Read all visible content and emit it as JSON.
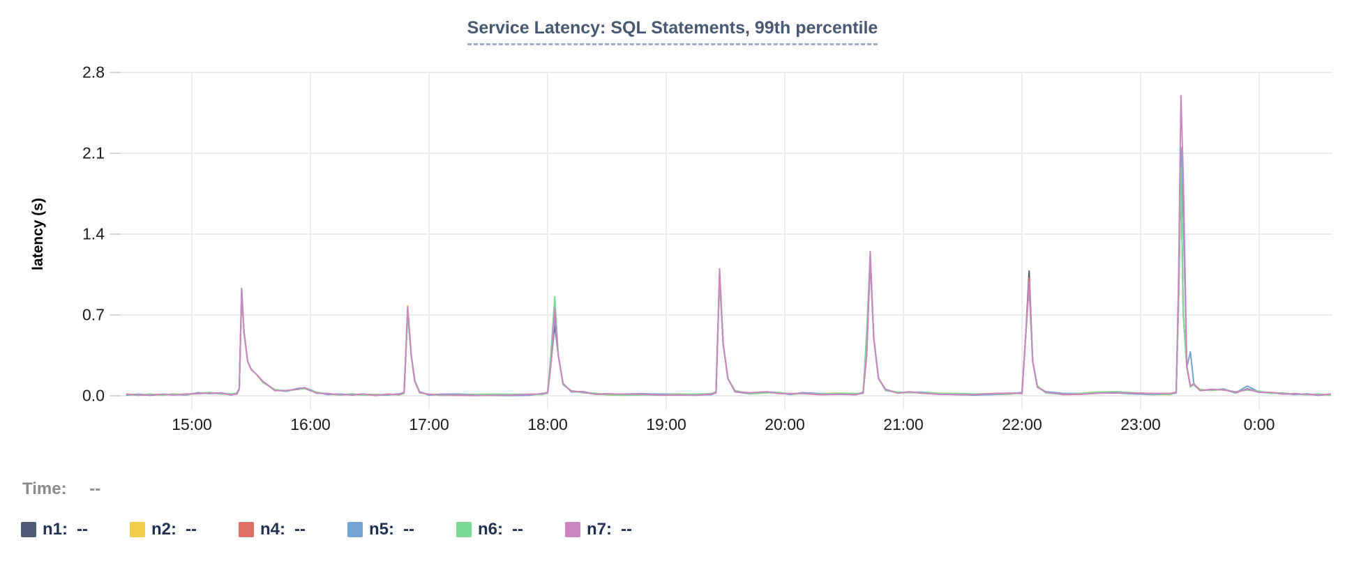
{
  "hover": {
    "time_label": "Time:",
    "time_value": "--"
  },
  "legend": [
    {
      "name": "n1",
      "label": "n1:",
      "value": "--",
      "color": "#4c5a73"
    },
    {
      "name": "n2",
      "label": "n2:",
      "value": "--",
      "color": "#f2cc4d"
    },
    {
      "name": "n4",
      "label": "n4:",
      "value": "--",
      "color": "#e06f68"
    },
    {
      "name": "n5",
      "label": "n5:",
      "value": "--",
      "color": "#70a3d7"
    },
    {
      "name": "n6",
      "label": "n6:",
      "value": "--",
      "color": "#7cdb97"
    },
    {
      "name": "n7",
      "label": "n7:",
      "value": "--",
      "color": "#cb86c1"
    }
  ],
  "chart_data": {
    "type": "line",
    "title": "Service Latency: SQL Statements, 99th percentile",
    "xlabel": "",
    "ylabel": "latency (s)",
    "ylim": [
      0,
      2.8
    ],
    "grid": true,
    "legend_position": "bottom",
    "y_ticks": [
      {
        "value": 0.0,
        "label": "0.0"
      },
      {
        "value": 0.7,
        "label": "0.7"
      },
      {
        "value": 1.4,
        "label": "1.4"
      },
      {
        "value": 2.1,
        "label": "2.1"
      },
      {
        "value": 2.8,
        "label": "2.8"
      }
    ],
    "x_ticks": [
      {
        "hour": 15,
        "label": "15:00"
      },
      {
        "hour": 16,
        "label": "16:00"
      },
      {
        "hour": 17,
        "label": "17:00"
      },
      {
        "hour": 18,
        "label": "18:00"
      },
      {
        "hour": 19,
        "label": "19:00"
      },
      {
        "hour": 20,
        "label": "20:00"
      },
      {
        "hour": 21,
        "label": "21:00"
      },
      {
        "hour": 22,
        "label": "22:00"
      },
      {
        "hour": 23,
        "label": "23:00"
      },
      {
        "hour": 24,
        "label": "0:00"
      }
    ],
    "x_domain": [
      14.31,
      24.62
    ],
    "x_unit": "hours (24h clock)",
    "x": [
      14.45,
      14.55,
      14.65,
      14.75,
      14.85,
      14.95,
      15.05,
      15.15,
      15.25,
      15.33,
      15.38,
      15.4,
      15.42,
      15.44,
      15.47,
      15.5,
      15.55,
      15.6,
      15.7,
      15.8,
      15.9,
      15.95,
      16.0,
      16.05,
      16.15,
      16.25,
      16.35,
      16.45,
      16.55,
      16.65,
      16.75,
      16.79,
      16.82,
      16.85,
      16.88,
      16.92,
      17.0,
      17.1,
      17.25,
      17.4,
      17.55,
      17.7,
      17.85,
      17.95,
      18.0,
      18.03,
      18.06,
      18.09,
      18.13,
      18.2,
      18.3,
      18.4,
      18.5,
      18.65,
      18.8,
      18.95,
      19.1,
      19.25,
      19.38,
      19.42,
      19.45,
      19.48,
      19.52,
      19.58,
      19.7,
      19.85,
      19.95,
      20.05,
      20.15,
      20.3,
      20.45,
      20.6,
      20.66,
      20.69,
      20.72,
      20.75,
      20.79,
      20.85,
      20.95,
      21.05,
      21.15,
      21.3,
      21.45,
      21.6,
      21.75,
      21.9,
      22.0,
      22.03,
      22.06,
      22.09,
      22.13,
      22.2,
      22.35,
      22.5,
      22.65,
      22.8,
      22.95,
      23.1,
      23.25,
      23.3,
      23.32,
      23.34,
      23.36,
      23.39,
      23.42,
      23.45,
      23.5,
      23.6,
      23.7,
      23.8,
      23.9,
      24.0,
      24.1,
      24.2,
      24.3,
      24.4,
      24.5,
      24.6
    ],
    "series": [
      {
        "name": "n1",
        "color": "#4c5a73",
        "values": [
          0.01,
          0.008,
          0.01,
          0.009,
          0.012,
          0.01,
          0.022,
          0.025,
          0.02,
          0.012,
          0.02,
          0.06,
          0.88,
          0.55,
          0.3,
          0.23,
          0.18,
          0.12,
          0.05,
          0.042,
          0.06,
          0.065,
          0.05,
          0.028,
          0.015,
          0.01,
          0.012,
          0.01,
          0.008,
          0.01,
          0.012,
          0.025,
          0.72,
          0.35,
          0.13,
          0.03,
          0.01,
          0.008,
          0.01,
          0.008,
          0.01,
          0.008,
          0.01,
          0.015,
          0.025,
          0.3,
          0.62,
          0.35,
          0.1,
          0.04,
          0.03,
          0.018,
          0.012,
          0.01,
          0.012,
          0.01,
          0.012,
          0.01,
          0.015,
          0.03,
          1.02,
          0.45,
          0.15,
          0.04,
          0.02,
          0.03,
          0.025,
          0.015,
          0.022,
          0.015,
          0.018,
          0.015,
          0.025,
          0.35,
          1.18,
          0.5,
          0.15,
          0.05,
          0.028,
          0.03,
          0.028,
          0.018,
          0.015,
          0.012,
          0.015,
          0.018,
          0.025,
          0.5,
          1.08,
          0.3,
          0.08,
          0.03,
          0.015,
          0.018,
          0.028,
          0.03,
          0.022,
          0.015,
          0.015,
          0.03,
          0.8,
          1.95,
          0.7,
          0.25,
          0.08,
          0.1,
          0.05,
          0.05,
          0.055,
          0.03,
          0.055,
          0.035,
          0.025,
          0.02,
          0.015,
          0.012,
          0.01,
          0.01
        ]
      },
      {
        "name": "n2",
        "color": "#f2cc4d",
        "values": [
          0.01,
          0.008,
          0.01,
          0.009,
          0.012,
          0.01,
          0.022,
          0.025,
          0.02,
          0.012,
          0.02,
          0.06,
          0.9,
          0.55,
          0.3,
          0.23,
          0.18,
          0.12,
          0.05,
          0.042,
          0.06,
          0.065,
          0.05,
          0.028,
          0.015,
          0.01,
          0.012,
          0.01,
          0.008,
          0.01,
          0.012,
          0.025,
          0.78,
          0.35,
          0.13,
          0.03,
          0.01,
          0.008,
          0.01,
          0.008,
          0.01,
          0.008,
          0.01,
          0.015,
          0.025,
          0.3,
          0.72,
          0.35,
          0.1,
          0.04,
          0.03,
          0.018,
          0.012,
          0.01,
          0.012,
          0.01,
          0.012,
          0.01,
          0.015,
          0.03,
          1.05,
          0.45,
          0.15,
          0.04,
          0.02,
          0.03,
          0.025,
          0.015,
          0.022,
          0.015,
          0.018,
          0.015,
          0.025,
          0.35,
          1.15,
          0.5,
          0.15,
          0.05,
          0.028,
          0.03,
          0.028,
          0.018,
          0.015,
          0.012,
          0.015,
          0.018,
          0.025,
          0.5,
          0.95,
          0.3,
          0.08,
          0.03,
          0.015,
          0.018,
          0.028,
          0.03,
          0.022,
          0.015,
          0.015,
          0.03,
          0.8,
          1.9,
          0.7,
          0.25,
          0.08,
          0.1,
          0.05,
          0.05,
          0.055,
          0.03,
          0.055,
          0.035,
          0.025,
          0.02,
          0.015,
          0.012,
          0.01,
          0.01
        ]
      },
      {
        "name": "n4",
        "color": "#e06f68",
        "values": [
          0.01,
          0.008,
          0.01,
          0.009,
          0.012,
          0.01,
          0.022,
          0.025,
          0.02,
          0.012,
          0.02,
          0.06,
          0.89,
          0.55,
          0.3,
          0.23,
          0.18,
          0.12,
          0.05,
          0.042,
          0.06,
          0.065,
          0.05,
          0.028,
          0.015,
          0.01,
          0.012,
          0.01,
          0.008,
          0.01,
          0.012,
          0.025,
          0.74,
          0.35,
          0.13,
          0.03,
          0.01,
          0.008,
          0.01,
          0.008,
          0.01,
          0.008,
          0.01,
          0.015,
          0.025,
          0.3,
          0.7,
          0.35,
          0.1,
          0.04,
          0.03,
          0.018,
          0.012,
          0.01,
          0.012,
          0.01,
          0.012,
          0.01,
          0.015,
          0.03,
          1.06,
          0.45,
          0.15,
          0.04,
          0.02,
          0.03,
          0.025,
          0.015,
          0.022,
          0.015,
          0.018,
          0.015,
          0.025,
          0.35,
          1.2,
          0.5,
          0.15,
          0.05,
          0.028,
          0.03,
          0.028,
          0.018,
          0.015,
          0.012,
          0.015,
          0.018,
          0.025,
          0.5,
          1.02,
          0.3,
          0.08,
          0.03,
          0.015,
          0.018,
          0.028,
          0.03,
          0.022,
          0.015,
          0.015,
          0.03,
          0.8,
          1.92,
          0.7,
          0.25,
          0.08,
          0.1,
          0.05,
          0.05,
          0.055,
          0.03,
          0.055,
          0.035,
          0.025,
          0.02,
          0.015,
          0.012,
          0.01,
          0.01
        ]
      },
      {
        "name": "n5",
        "color": "#70a3d7",
        "values": [
          0.01,
          0.008,
          0.01,
          0.009,
          0.012,
          0.01,
          0.022,
          0.025,
          0.02,
          0.012,
          0.02,
          0.06,
          0.93,
          0.55,
          0.3,
          0.23,
          0.18,
          0.12,
          0.05,
          0.042,
          0.06,
          0.065,
          0.05,
          0.028,
          0.015,
          0.01,
          0.012,
          0.01,
          0.008,
          0.01,
          0.012,
          0.025,
          0.73,
          0.35,
          0.13,
          0.03,
          0.01,
          0.008,
          0.01,
          0.008,
          0.01,
          0.008,
          0.01,
          0.015,
          0.025,
          0.3,
          0.68,
          0.35,
          0.1,
          0.04,
          0.03,
          0.018,
          0.012,
          0.01,
          0.012,
          0.01,
          0.012,
          0.01,
          0.015,
          0.03,
          1.04,
          0.45,
          0.15,
          0.04,
          0.02,
          0.03,
          0.025,
          0.015,
          0.022,
          0.015,
          0.018,
          0.015,
          0.025,
          0.35,
          1.17,
          0.5,
          0.15,
          0.05,
          0.028,
          0.03,
          0.028,
          0.018,
          0.015,
          0.012,
          0.015,
          0.018,
          0.025,
          0.5,
          0.97,
          0.3,
          0.08,
          0.03,
          0.015,
          0.018,
          0.028,
          0.03,
          0.022,
          0.015,
          0.015,
          0.03,
          0.85,
          2.15,
          1.55,
          0.25,
          0.38,
          0.1,
          0.05,
          0.05,
          0.055,
          0.03,
          0.08,
          0.035,
          0.025,
          0.02,
          0.015,
          0.012,
          0.01,
          0.01
        ]
      },
      {
        "name": "n6",
        "color": "#7cdb97",
        "values": [
          0.01,
          0.008,
          0.01,
          0.009,
          0.012,
          0.01,
          0.022,
          0.025,
          0.02,
          0.012,
          0.02,
          0.06,
          0.91,
          0.55,
          0.3,
          0.23,
          0.18,
          0.12,
          0.05,
          0.042,
          0.06,
          0.065,
          0.05,
          0.028,
          0.015,
          0.01,
          0.012,
          0.01,
          0.008,
          0.01,
          0.012,
          0.025,
          0.72,
          0.35,
          0.13,
          0.03,
          0.01,
          0.008,
          0.01,
          0.008,
          0.01,
          0.008,
          0.01,
          0.015,
          0.025,
          0.4,
          0.86,
          0.35,
          0.1,
          0.04,
          0.03,
          0.018,
          0.012,
          0.01,
          0.012,
          0.01,
          0.012,
          0.01,
          0.015,
          0.03,
          1.03,
          0.45,
          0.15,
          0.04,
          0.02,
          0.03,
          0.025,
          0.015,
          0.022,
          0.015,
          0.018,
          0.015,
          0.025,
          0.55,
          1.22,
          0.5,
          0.15,
          0.05,
          0.028,
          0.03,
          0.028,
          0.018,
          0.015,
          0.012,
          0.015,
          0.018,
          0.025,
          0.5,
          0.96,
          0.3,
          0.08,
          0.03,
          0.015,
          0.018,
          0.028,
          0.03,
          0.022,
          0.015,
          0.015,
          0.03,
          0.8,
          1.98,
          0.7,
          0.25,
          0.08,
          0.1,
          0.05,
          0.05,
          0.055,
          0.03,
          0.055,
          0.035,
          0.025,
          0.02,
          0.015,
          0.012,
          0.01,
          0.01
        ]
      },
      {
        "name": "n7",
        "color": "#cb86c1",
        "values": [
          0.01,
          0.008,
          0.01,
          0.009,
          0.012,
          0.01,
          0.022,
          0.025,
          0.02,
          0.012,
          0.02,
          0.06,
          0.92,
          0.55,
          0.3,
          0.23,
          0.18,
          0.12,
          0.05,
          0.042,
          0.06,
          0.065,
          0.05,
          0.028,
          0.015,
          0.01,
          0.012,
          0.01,
          0.008,
          0.01,
          0.012,
          0.025,
          0.77,
          0.35,
          0.13,
          0.03,
          0.01,
          0.008,
          0.01,
          0.008,
          0.01,
          0.008,
          0.01,
          0.015,
          0.025,
          0.3,
          0.76,
          0.35,
          0.1,
          0.04,
          0.03,
          0.018,
          0.012,
          0.01,
          0.012,
          0.01,
          0.012,
          0.01,
          0.015,
          0.03,
          1.1,
          0.45,
          0.15,
          0.04,
          0.02,
          0.03,
          0.025,
          0.015,
          0.022,
          0.015,
          0.018,
          0.015,
          0.025,
          0.35,
          1.25,
          0.5,
          0.15,
          0.05,
          0.028,
          0.03,
          0.028,
          0.018,
          0.015,
          0.012,
          0.015,
          0.018,
          0.025,
          0.5,
          0.99,
          0.3,
          0.08,
          0.03,
          0.015,
          0.018,
          0.028,
          0.03,
          0.022,
          0.015,
          0.015,
          0.03,
          1.0,
          2.6,
          1.9,
          0.25,
          0.08,
          0.1,
          0.05,
          0.05,
          0.055,
          0.03,
          0.055,
          0.035,
          0.025,
          0.02,
          0.015,
          0.012,
          0.01,
          0.01
        ]
      }
    ]
  }
}
